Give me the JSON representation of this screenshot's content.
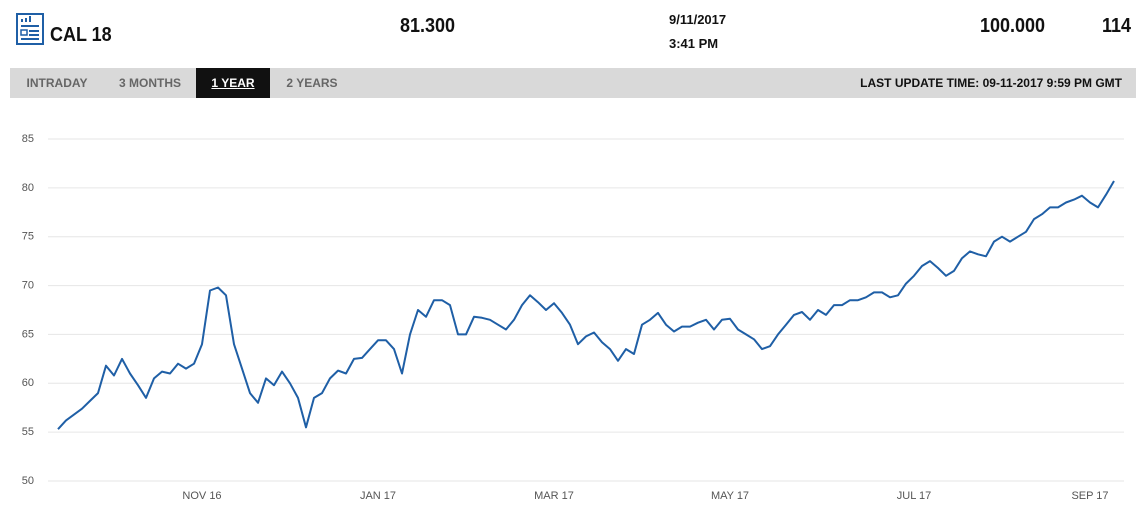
{
  "header": {
    "symbol": "CAL 18",
    "price": "81.300",
    "date": "9/11/2017",
    "time": "3:41 PM",
    "value2": "100.000",
    "value3": "114"
  },
  "tabs": {
    "items": [
      "INTRADAY",
      "3 MONTHS",
      "1 YEAR",
      "2 YEARS"
    ],
    "last_update": "LAST UPDATE TIME: 09-11-2017 9:59 PM GMT"
  },
  "chart_data": {
    "type": "line",
    "color": "#1f5fa6",
    "grid": true,
    "ylim": [
      50,
      85
    ],
    "yticks": [
      50,
      55,
      60,
      65,
      70,
      75,
      80,
      85
    ],
    "categories": [
      null,
      null,
      null,
      null,
      null,
      null,
      null,
      null,
      null,
      null,
      null,
      null,
      null,
      null,
      null,
      null,
      null,
      null,
      "NOV 16",
      null,
      null,
      null,
      null,
      null,
      null,
      null,
      null,
      null,
      null,
      null,
      null,
      null,
      null,
      null,
      null,
      null,
      null,
      null,
      null,
      null,
      "JAN 17",
      null,
      null,
      null,
      null,
      null,
      null,
      null,
      null,
      null,
      null,
      null,
      null,
      null,
      null,
      null,
      null,
      null,
      null,
      null,
      null,
      null,
      "MAR 17",
      null,
      null,
      null,
      null,
      null,
      null,
      null,
      null,
      null,
      null,
      null,
      null,
      null,
      null,
      null,
      null,
      null,
      null,
      null,
      null,
      null,
      "MAY 17",
      null,
      null,
      null,
      null,
      null,
      null,
      null,
      null,
      null,
      null,
      null,
      null,
      null,
      null,
      null,
      null,
      null,
      null,
      null,
      null,
      null,
      null,
      "JUL 17",
      null,
      null,
      null,
      null,
      null,
      null,
      null,
      null,
      null,
      null,
      null,
      null,
      null,
      null,
      null,
      null,
      null,
      null,
      null,
      null,
      null,
      "SEP 17",
      null,
      null,
      null
    ],
    "values": [
      55.3,
      56.2,
      56.8,
      57.4,
      58.2,
      59.0,
      61.8,
      60.8,
      62.5,
      61.0,
      59.8,
      58.5,
      60.5,
      61.2,
      61.0,
      62.0,
      61.5,
      62.0,
      64.0,
      69.5,
      69.8,
      69.0,
      64.0,
      61.5,
      59.0,
      58.0,
      60.5,
      59.8,
      61.2,
      60.0,
      58.5,
      55.5,
      58.5,
      59.0,
      60.5,
      61.3,
      61.0,
      62.5,
      62.6,
      63.5,
      64.4,
      64.4,
      63.5,
      61.0,
      65.0,
      67.5,
      66.8,
      68.5,
      68.5,
      68.0,
      65.0,
      65.0,
      66.8,
      66.7,
      66.5,
      66.0,
      65.5,
      66.5,
      68.0,
      69.0,
      68.3,
      67.5,
      68.2,
      67.2,
      66.0,
      64.0,
      64.8,
      65.2,
      64.2,
      63.5,
      62.3,
      63.5,
      63.0,
      66.0,
      66.5,
      67.2,
      66.0,
      65.3,
      65.8,
      65.8,
      66.2,
      66.5,
      65.5,
      66.5,
      66.6,
      65.5,
      65.0,
      64.5,
      63.5,
      63.8,
      65.0,
      66.0,
      67.0,
      67.3,
      66.5,
      67.5,
      67.0,
      68.0,
      68.0,
      68.5,
      68.5,
      68.8,
      69.3,
      69.3,
      68.8,
      69.0,
      70.2,
      71.0,
      72.0,
      72.5,
      71.8,
      71.0,
      71.5,
      72.8,
      73.5,
      73.2,
      73.0,
      74.5,
      75.0,
      74.5,
      75.0,
      75.5,
      76.8,
      77.3,
      78.0,
      78.0,
      78.5,
      78.8,
      79.2,
      78.5,
      78.0,
      79.3,
      80.7
    ]
  }
}
